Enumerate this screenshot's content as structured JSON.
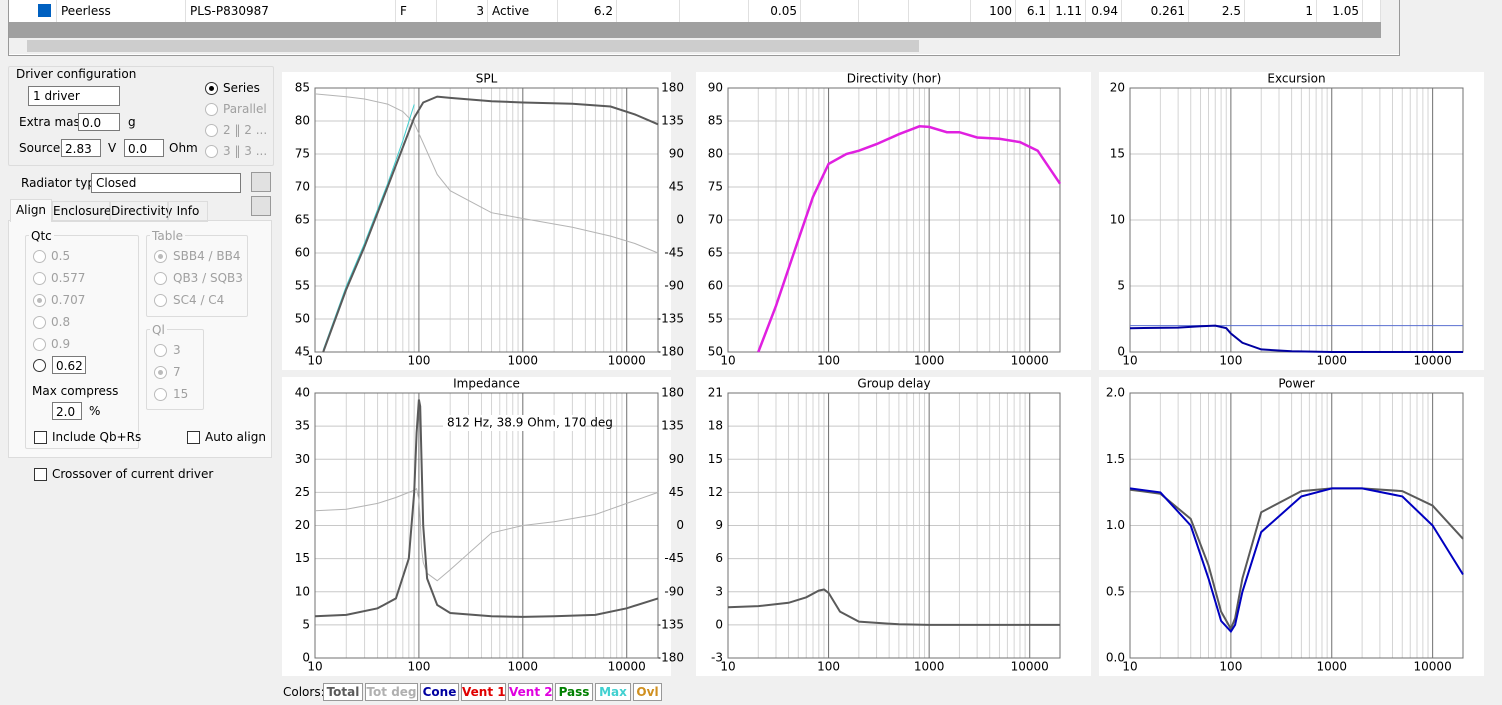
{
  "driver_row": [
    "Peerless",
    "PLS-P830987",
    "F",
    "3",
    "Active",
    "6.2",
    "0.05",
    "100",
    "6.1",
    "1.11",
    "0.94",
    "0.261",
    "2.5",
    "1",
    "1.05"
  ],
  "driver_config": {
    "title": "Driver configuration",
    "driver_count": "1 driver",
    "extra_mass_label": "Extra mass",
    "extra_mass": "0.0",
    "extra_mass_unit": "g",
    "source_label": "Source",
    "source_voltage": "2.83",
    "source_voltage_unit": "V",
    "source_resistance": "0.0",
    "source_resistance_unit": "Ohm",
    "wiring": [
      "Series",
      "Parallel",
      "2 ‖ 2 ...",
      "3 ‖ 3 ..."
    ]
  },
  "radiator": {
    "label": "Radiator type",
    "value": "Closed"
  },
  "tabs": [
    "Align",
    "Enclosure",
    "Directivity",
    "Info"
  ],
  "qtc": {
    "title": "Qtc",
    "options": [
      "0.5",
      "0.577",
      "0.707",
      "0.8",
      "0.9"
    ],
    "custom": "0.62",
    "max_compress_label": "Max compress",
    "max_compress": "2.0",
    "max_compress_unit": "%"
  },
  "table_group": {
    "title": "Table",
    "options": [
      "SBB4 / BB4",
      "QB3 / SQB3",
      "SC4 / C4"
    ]
  },
  "ql_group": {
    "title": "Ql",
    "options": [
      "3",
      "7",
      "15"
    ]
  },
  "checkboxes": [
    "Include Qb+Rs",
    "Auto align",
    "Crossover of current driver"
  ],
  "colors": {
    "label": "Colors:",
    "items": [
      {
        "name": "Total",
        "color": "#5a5a5a"
      },
      {
        "name": "Tot deg",
        "color": "#b0b0b0"
      },
      {
        "name": "Cone",
        "color": "#0000a0"
      },
      {
        "name": "Vent 1",
        "color": "#e00000"
      },
      {
        "name": "Vent 2",
        "color": "#e000e0"
      },
      {
        "name": "Pass",
        "color": "#008000"
      },
      {
        "name": "Max",
        "color": "#40d0d0"
      },
      {
        "name": "Ovl",
        "color": "#d09020"
      }
    ]
  },
  "chart_data": [
    {
      "type": "line",
      "title": "SPL",
      "xscale": "log",
      "grid": true,
      "xlim": [
        10,
        20000
      ],
      "xticks": [
        10,
        100,
        1000,
        10000
      ],
      "ylim": [
        45,
        85
      ],
      "yticks": [
        45,
        50,
        55,
        60,
        65,
        70,
        75,
        80,
        85
      ],
      "y2lim": [
        -180,
        180
      ],
      "y2ticks": [
        -180,
        -135,
        -90,
        -45,
        0,
        45,
        90,
        135,
        180
      ],
      "x": [
        10,
        12,
        20,
        30,
        50,
        70,
        90,
        110,
        150,
        200,
        500,
        1000,
        3000,
        7000,
        12000,
        20000
      ],
      "series": [
        {
          "color": "#b4b4b4",
          "axis": "y2",
          "values": [
            172,
            171,
            168,
            165,
            158,
            148,
            132,
            105,
            62,
            40,
            10,
            2,
            -10,
            -22,
            -32,
            -45
          ]
        },
        {
          "color": "#40d0d0",
          "values": [
            null,
            45.3,
            55,
            61.5,
            70.5,
            77,
            82.5,
            null,
            null,
            null,
            null,
            null,
            null,
            null,
            null,
            null
          ]
        },
        {
          "color": "#5a5a5a",
          "values": [
            null,
            45,
            54.5,
            61,
            70,
            76,
            80.5,
            82.8,
            83.7,
            83.5,
            83,
            82.8,
            82.6,
            82.2,
            81,
            79.5
          ]
        }
      ]
    },
    {
      "type": "line",
      "title": "Directivity (hor)",
      "xscale": "log",
      "grid": true,
      "xlim": [
        10,
        20000
      ],
      "xticks": [
        10,
        100,
        1000,
        10000
      ],
      "ylim": [
        50,
        90
      ],
      "yticks": [
        50,
        55,
        60,
        65,
        70,
        75,
        80,
        85,
        90
      ],
      "x": [
        20,
        30,
        50,
        70,
        100,
        150,
        200,
        300,
        500,
        800,
        1000,
        1500,
        2000,
        3000,
        5000,
        8000,
        12000,
        20000
      ],
      "series": [
        {
          "color": "#e020e0",
          "values": [
            50,
            57,
            67,
            73.5,
            78.5,
            80,
            80.5,
            81.5,
            83,
            84.2,
            84.1,
            83.3,
            83.3,
            82.5,
            82.3,
            81.8,
            80.5,
            75.5
          ]
        }
      ]
    },
    {
      "type": "line",
      "title": "Excursion",
      "xscale": "log",
      "grid": true,
      "xlim": [
        10,
        20000
      ],
      "xticks": [
        10,
        100,
        1000,
        10000
      ],
      "ylim": [
        0,
        20
      ],
      "yticks": [
        0,
        5,
        10,
        15,
        20
      ],
      "x": [
        10,
        30,
        50,
        70,
        90,
        100,
        130,
        200,
        400,
        1000,
        20000
      ],
      "series": [
        {
          "color": "#5a6fd0",
          "values": [
            2,
            2,
            2,
            2,
            2,
            2,
            2,
            2,
            2,
            2,
            2
          ]
        },
        {
          "color": "#0000a0",
          "values": [
            1.8,
            1.85,
            1.95,
            2,
            1.8,
            1.4,
            0.7,
            0.2,
            0.05,
            0,
            0
          ]
        }
      ]
    },
    {
      "type": "line",
      "title": "Impedance",
      "xscale": "log",
      "grid": true,
      "xlim": [
        10,
        20000
      ],
      "xticks": [
        10,
        100,
        1000,
        10000
      ],
      "ylim": [
        0,
        40
      ],
      "yticks": [
        0,
        5,
        10,
        15,
        20,
        25,
        30,
        35,
        40
      ],
      "y2lim": [
        -180,
        180
      ],
      "y2ticks": [
        -180,
        -135,
        -90,
        -45,
        0,
        45,
        90,
        135,
        180
      ],
      "annotation": "812 Hz, 38.9 Ohm, 170 deg",
      "x": [
        10,
        20,
        40,
        60,
        80,
        90,
        95,
        100,
        103,
        106,
        110,
        120,
        150,
        200,
        500,
        1000,
        2000,
        5000,
        10000,
        20000
      ],
      "series": [
        {
          "color": "#b4b4b4",
          "axis": "y2",
          "values": [
            20,
            22,
            30,
            38,
            45,
            48,
            50,
            35,
            10,
            -30,
            -50,
            -65,
            -75,
            -60,
            -10,
            0,
            5,
            15,
            30,
            45
          ]
        },
        {
          "color": "#5a5a5a",
          "values": [
            6.3,
            6.5,
            7.5,
            9,
            15,
            25,
            34,
            39,
            38,
            30,
            20,
            12,
            8,
            6.8,
            6.3,
            6.2,
            6.3,
            6.5,
            7.5,
            9
          ]
        }
      ]
    },
    {
      "type": "line",
      "title": "Group delay",
      "xscale": "log",
      "grid": true,
      "xlim": [
        10,
        20000
      ],
      "xticks": [
        10,
        100,
        1000,
        10000
      ],
      "ylim": [
        -3,
        21
      ],
      "yticks": [
        -3,
        0,
        3,
        6,
        9,
        12,
        15,
        18,
        21
      ],
      "x": [
        10,
        20,
        40,
        60,
        80,
        90,
        100,
        130,
        200,
        500,
        1000,
        20000
      ],
      "series": [
        {
          "color": "#5a5a5a",
          "values": [
            1.6,
            1.7,
            2,
            2.5,
            3.1,
            3.2,
            2.9,
            1.2,
            0.3,
            0.05,
            0,
            0
          ]
        }
      ]
    },
    {
      "type": "line",
      "title": "Power",
      "xscale": "log",
      "grid": true,
      "xlim": [
        10,
        20000
      ],
      "xticks": [
        10,
        100,
        1000,
        10000
      ],
      "ylim": [
        0,
        2
      ],
      "yticks": [
        {
          "value": 0,
          "label": "0.0"
        },
        0.5,
        {
          "value": 1,
          "label": "1.0"
        },
        1.5,
        {
          "value": 2,
          "label": "2.0"
        }
      ],
      "x": [
        10,
        20,
        40,
        60,
        80,
        100,
        110,
        130,
        200,
        500,
        1000,
        2000,
        5000,
        10000,
        20000
      ],
      "series": [
        {
          "color": "#5a5a5a",
          "values": [
            1.27,
            1.24,
            1.05,
            0.7,
            0.35,
            0.22,
            0.3,
            0.6,
            1.1,
            1.26,
            1.28,
            1.28,
            1.26,
            1.15,
            0.9
          ]
        },
        {
          "color": "#0000c0",
          "values": [
            1.28,
            1.25,
            1,
            0.6,
            0.28,
            0.2,
            0.25,
            0.5,
            0.95,
            1.22,
            1.28,
            1.28,
            1.22,
            1,
            0.63
          ]
        }
      ]
    }
  ]
}
